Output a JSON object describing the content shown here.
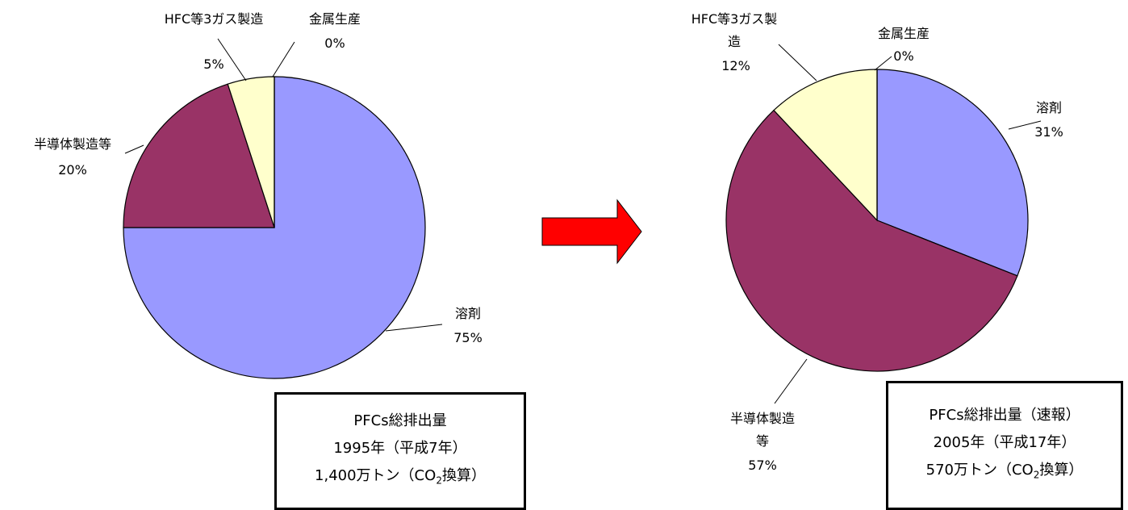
{
  "chart_data": [
    {
      "type": "pie",
      "categories": [
        "溶剤",
        "半導体製造等",
        "HFC等3ガス製造",
        "金属生産"
      ],
      "values": [
        75,
        20,
        5,
        0
      ],
      "value_labels": [
        "75%",
        "20%",
        "5%",
        "0%"
      ],
      "colors": [
        "#9999ff",
        "#993366",
        "#ffffcc",
        "#ccffff"
      ],
      "note": [
        "PFCs総排出量",
        "1995年（平成7年）",
        [
          "1,400万トン（CO",
          "2",
          "換算）"
        ]
      ]
    },
    {
      "type": "pie",
      "categories": [
        "溶剤",
        "半導体製造等",
        "HFC等3ガス製造",
        "金属生産"
      ],
      "values": [
        31,
        57,
        12,
        0
      ],
      "value_labels": [
        "31%",
        "57%",
        "12%",
        "0%"
      ],
      "colors": [
        "#9999ff",
        "#993366",
        "#ffffcc",
        "#ccffff"
      ],
      "note": [
        "PFCs総排出量（速報）",
        "2005年（平成17年）",
        [
          "570万トン（CO",
          "2",
          "換算）"
        ]
      ]
    }
  ]
}
